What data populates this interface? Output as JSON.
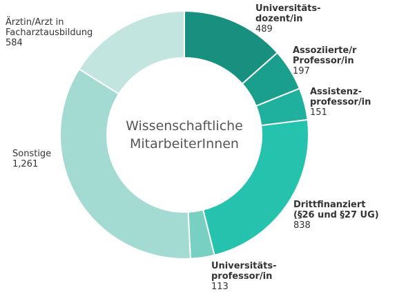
{
  "chart_data": {
    "type": "pie",
    "donut": true,
    "title": "Wissenschaftliche MitarbeiterInnen",
    "title_lines": [
      "Wissenschaftliche",
      "MitarbeiterInnen"
    ],
    "slices": [
      {
        "name_lines": [
          "Universitäts-",
          "dozent/in"
        ],
        "value_label": "489",
        "value": 489,
        "color": "#17907f",
        "bold": true
      },
      {
        "name_lines": [
          "Assoziierte/r",
          "Professor/in"
        ],
        "value_label": "197",
        "value": 197,
        "color": "#1b9f8d",
        "bold": true
      },
      {
        "name_lines": [
          "Assistenz-",
          "professor/in"
        ],
        "value_label": "151",
        "value": 151,
        "color": "#20b09e",
        "bold": true
      },
      {
        "name_lines": [
          "Drittfinanziert",
          "(§26 und §27 UG)"
        ],
        "value_label": "838",
        "value": 838,
        "color": "#25c2ae",
        "bold": true
      },
      {
        "name_lines": [
          "Universitäts-",
          "professor/in"
        ],
        "value_label": "113",
        "value": 113,
        "color": "#78d0c2",
        "bold": true
      },
      {
        "name_lines": [
          "Sonstige"
        ],
        "value_label": "1,261",
        "value": 1261,
        "color": "#a3dbd2",
        "bold": false
      },
      {
        "name_lines": [
          "Ärztin/Arzt in",
          "Facharztausbildung"
        ],
        "value_label": "584",
        "value": 584,
        "color": "#c3e5df",
        "bold": false
      }
    ]
  }
}
